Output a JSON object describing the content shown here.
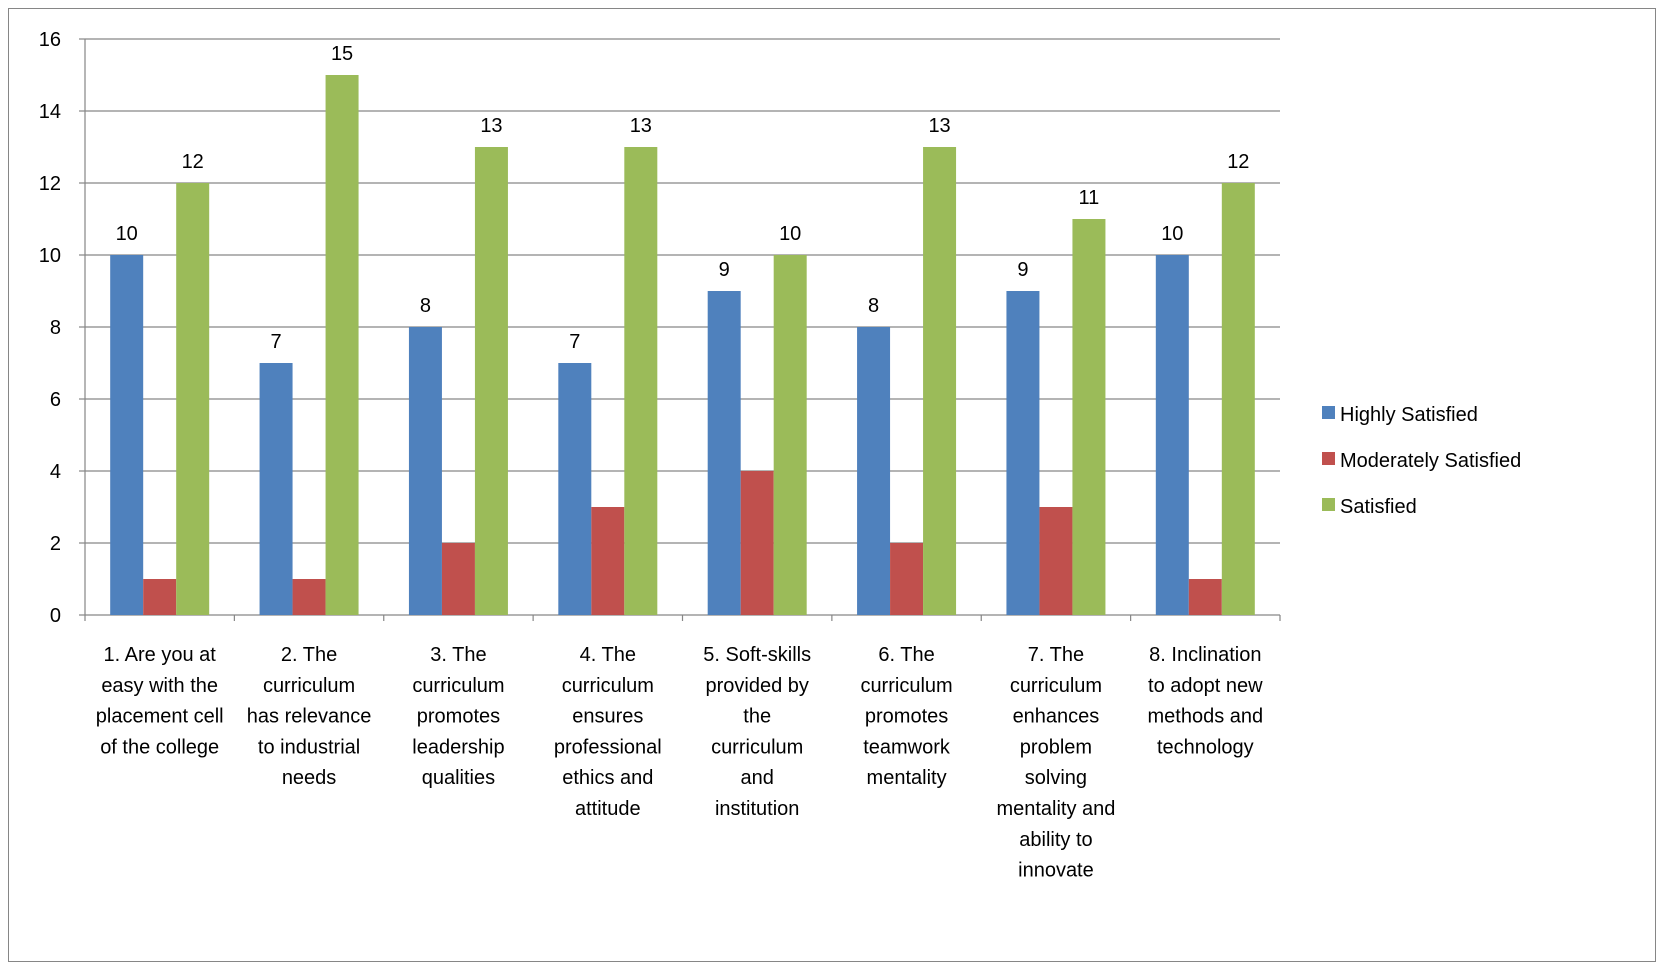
{
  "chart_data": {
    "type": "bar",
    "title": "",
    "xlabel": "",
    "ylabel": "",
    "ylim": [
      0,
      16
    ],
    "y_ticks": [
      "0",
      "2",
      "4",
      "6",
      "8",
      "10",
      "12",
      "14",
      "16"
    ],
    "grid": true,
    "legend_position": "right",
    "categories": [
      "1. Are you at easy with the placement cell of the college",
      "2. The curriculum has relevance to industrial needs",
      "3. The curriculum promotes leadership qualities",
      "4. The curriculum ensures professional ethics and attitude",
      "5. Soft-skills provided by the curriculum and institution",
      "6. The curriculum promotes teamwork mentality",
      "7. The curriculum enhances problem solving mentality and ability to innovate",
      "8. Inclination to adopt new methods and technology"
    ],
    "category_lines": [
      [
        "1. Are you at",
        "easy with the",
        "placement cell",
        "of the college"
      ],
      [
        "2. The",
        "curriculum",
        "has relevance",
        "to industrial",
        "needs"
      ],
      [
        "3. The",
        "curriculum",
        "promotes",
        "leadership",
        "qualities"
      ],
      [
        "4. The",
        "curriculum",
        "ensures",
        "professional",
        "ethics and",
        "attitude"
      ],
      [
        "5. Soft-skills",
        "provided by",
        "the",
        "curriculum",
        "and",
        "institution"
      ],
      [
        "6. The",
        "curriculum",
        "promotes",
        "teamwork",
        "mentality"
      ],
      [
        "7. The",
        "curriculum",
        "enhances",
        "problem",
        "solving",
        "mentality and",
        "ability to",
        "innovate"
      ],
      [
        "8. Inclination",
        "to adopt new",
        "methods and",
        "technology"
      ]
    ],
    "series": [
      {
        "name": "Highly Satisfied",
        "color": "#4F81BD",
        "values": [
          10,
          7,
          8,
          7,
          9,
          8,
          9,
          10
        ],
        "labels_shown": true
      },
      {
        "name": "Moderately Satisfied",
        "color": "#C0504D",
        "values": [
          1,
          1,
          2,
          3,
          4,
          2,
          3,
          1
        ],
        "labels_shown": false
      },
      {
        "name": "Satisfied",
        "color": "#9BBB59",
        "values": [
          12,
          15,
          13,
          13,
          10,
          13,
          11,
          12
        ],
        "labels_shown": true
      }
    ]
  }
}
